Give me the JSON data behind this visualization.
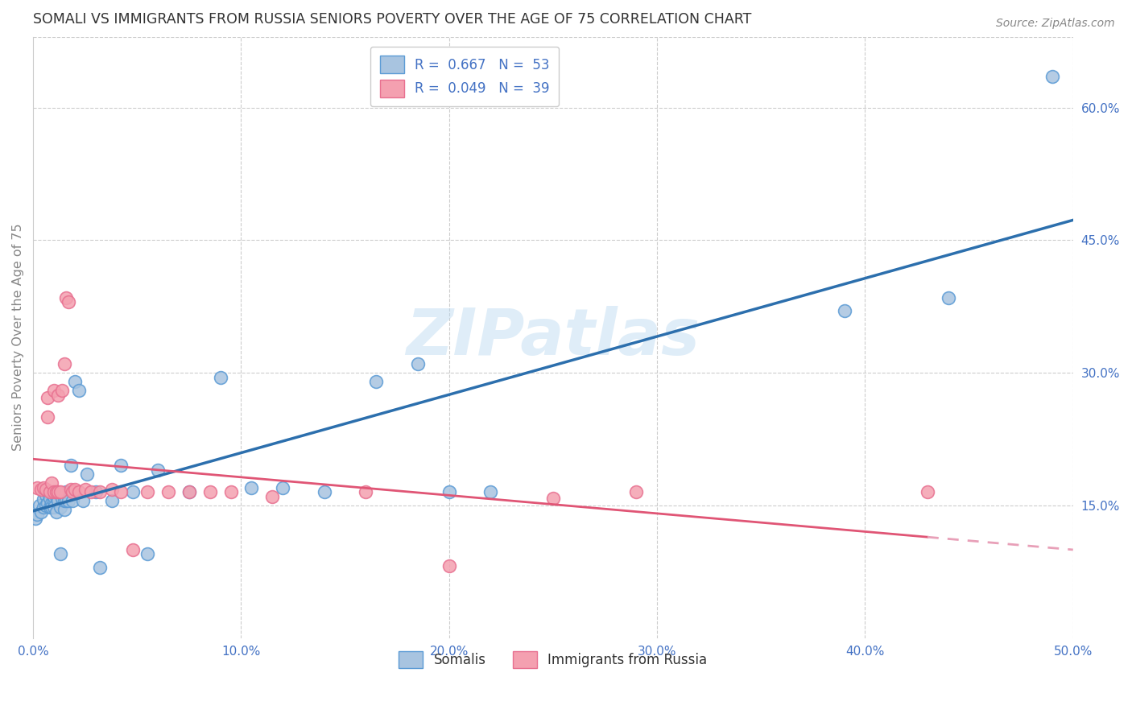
{
  "title": "SOMALI VS IMMIGRANTS FROM RUSSIA SENIORS POVERTY OVER THE AGE OF 75 CORRELATION CHART",
  "source": "Source: ZipAtlas.com",
  "ylabel": "Seniors Poverty Over the Age of 75",
  "xlim": [
    0.0,
    0.5
  ],
  "ylim": [
    0.0,
    0.68
  ],
  "xtick_vals": [
    0.0,
    0.1,
    0.2,
    0.3,
    0.4,
    0.5
  ],
  "xticklabels": [
    "0.0%",
    "10.0%",
    "20.0%",
    "30.0%",
    "40.0%",
    "50.0%"
  ],
  "ytick_right_vals": [
    0.15,
    0.3,
    0.45,
    0.6
  ],
  "yticklabels_right": [
    "15.0%",
    "30.0%",
    "45.0%",
    "60.0%"
  ],
  "grid_color": "#cccccc",
  "watermark": "ZIPatlas",
  "somali_face_color": "#a8c4e0",
  "somali_edge_color": "#5b9bd5",
  "russia_face_color": "#f4a0b0",
  "russia_edge_color": "#e87090",
  "somali_line_color": "#2c6fad",
  "russia_solid_color": "#e05575",
  "russia_dash_color": "#e8a0b8",
  "text_blue": "#4472c4",
  "text_dark": "#333333",
  "text_gray": "#888888",
  "legend_somali": "R =  0.667   N =  53",
  "legend_russia": "R =  0.049   N =  39",
  "somali_x": [
    0.001,
    0.002,
    0.003,
    0.004,
    0.005,
    0.005,
    0.006,
    0.006,
    0.007,
    0.007,
    0.008,
    0.008,
    0.009,
    0.009,
    0.01,
    0.01,
    0.01,
    0.011,
    0.011,
    0.012,
    0.013,
    0.013,
    0.014,
    0.015,
    0.015,
    0.016,
    0.016,
    0.017,
    0.018,
    0.019,
    0.02,
    0.022,
    0.024,
    0.026,
    0.03,
    0.032,
    0.038,
    0.042,
    0.048,
    0.055,
    0.06,
    0.075,
    0.09,
    0.105,
    0.12,
    0.14,
    0.165,
    0.185,
    0.2,
    0.22,
    0.39,
    0.44,
    0.49
  ],
  "somali_y": [
    0.135,
    0.14,
    0.15,
    0.143,
    0.148,
    0.157,
    0.15,
    0.162,
    0.153,
    0.165,
    0.148,
    0.158,
    0.153,
    0.148,
    0.155,
    0.16,
    0.148,
    0.143,
    0.16,
    0.155,
    0.148,
    0.095,
    0.158,
    0.145,
    0.155,
    0.155,
    0.165,
    0.155,
    0.195,
    0.155,
    0.29,
    0.28,
    0.155,
    0.185,
    0.165,
    0.08,
    0.155,
    0.195,
    0.165,
    0.095,
    0.19,
    0.165,
    0.295,
    0.17,
    0.17,
    0.165,
    0.29,
    0.31,
    0.165,
    0.165,
    0.37,
    0.385,
    0.635
  ],
  "russia_x": [
    0.002,
    0.004,
    0.005,
    0.006,
    0.007,
    0.007,
    0.008,
    0.009,
    0.01,
    0.01,
    0.011,
    0.012,
    0.012,
    0.013,
    0.014,
    0.015,
    0.016,
    0.017,
    0.018,
    0.019,
    0.02,
    0.022,
    0.025,
    0.028,
    0.032,
    0.038,
    0.042,
    0.048,
    0.055,
    0.065,
    0.075,
    0.085,
    0.095,
    0.115,
    0.16,
    0.2,
    0.25,
    0.29,
    0.43
  ],
  "russia_y": [
    0.17,
    0.168,
    0.17,
    0.168,
    0.272,
    0.25,
    0.165,
    0.175,
    0.165,
    0.28,
    0.165,
    0.275,
    0.165,
    0.165,
    0.28,
    0.31,
    0.385,
    0.38,
    0.168,
    0.165,
    0.168,
    0.165,
    0.168,
    0.165,
    0.165,
    0.168,
    0.165,
    0.1,
    0.165,
    0.165,
    0.165,
    0.165,
    0.165,
    0.16,
    0.165,
    0.082,
    0.158,
    0.165,
    0.165
  ],
  "bg_color": "#ffffff"
}
